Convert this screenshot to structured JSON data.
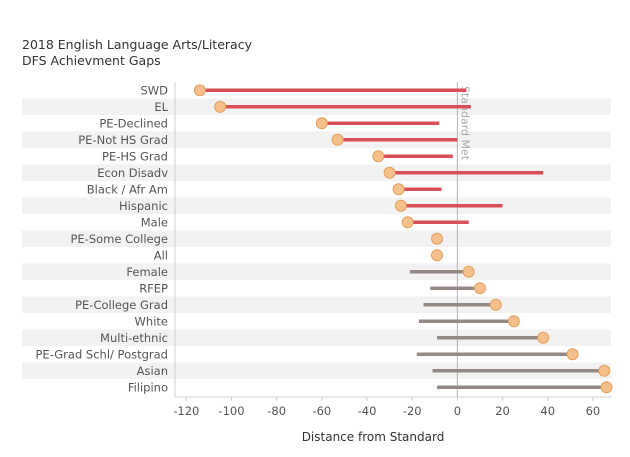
{
  "title_line1": "2018 English Language Arts/Literacy",
  "title_line2": "DFS Achievment Gaps",
  "colors": {
    "gap_below": "#d94f57",
    "gap_above": "#948985",
    "marker_fill": "#f5c08c",
    "marker_stroke": "#e3a05c",
    "band": "#f2f2f2",
    "reference_line": "#b3b3b3"
  },
  "chart_data": {
    "type": "dumbbell",
    "xlabel": "Distance from Standard",
    "xlim": [
      -125,
      68
    ],
    "xticks": [
      -120,
      -100,
      -80,
      -60,
      -40,
      -20,
      0,
      20,
      40,
      60
    ],
    "reference_line": {
      "value": 0,
      "label": "Standard Met"
    },
    "rows": [
      {
        "group": "SWD",
        "dfs": -114,
        "gap_end": 4,
        "gap": "below"
      },
      {
        "group": "EL",
        "dfs": -105,
        "gap_end": 6,
        "gap": "below"
      },
      {
        "group": "PE-Declined",
        "dfs": -60,
        "gap_end": -8,
        "gap": "below"
      },
      {
        "group": "PE-Not HS Grad",
        "dfs": -53,
        "gap_end": 0,
        "gap": "below"
      },
      {
        "group": "PE-HS Grad",
        "dfs": -35,
        "gap_end": -2,
        "gap": "below"
      },
      {
        "group": "Econ Disadv",
        "dfs": -30,
        "gap_end": 38,
        "gap": "below"
      },
      {
        "group": "Black / Afr Am",
        "dfs": -26,
        "gap_end": -7,
        "gap": "below"
      },
      {
        "group": "Hispanic",
        "dfs": -25,
        "gap_end": 20,
        "gap": "below"
      },
      {
        "group": "Male",
        "dfs": -22,
        "gap_end": 5,
        "gap": "below"
      },
      {
        "group": "PE-Some College",
        "dfs": -9,
        "gap_end": null,
        "gap": "none"
      },
      {
        "group": "All",
        "dfs": -9,
        "gap_end": null,
        "gap": "none"
      },
      {
        "group": "Female",
        "dfs": 5,
        "gap_end": -21,
        "gap": "above"
      },
      {
        "group": "RFEP",
        "dfs": 10,
        "gap_end": -12,
        "gap": "above"
      },
      {
        "group": "PE-College Grad",
        "dfs": 17,
        "gap_end": -15,
        "gap": "above"
      },
      {
        "group": "White",
        "dfs": 25,
        "gap_end": -17,
        "gap": "above"
      },
      {
        "group": "Multi-ethnic",
        "dfs": 38,
        "gap_end": -9,
        "gap": "above"
      },
      {
        "group": "PE-Grad Schl/ Postgrad",
        "dfs": 51,
        "gap_end": -18,
        "gap": "above"
      },
      {
        "group": "Asian",
        "dfs": 65,
        "gap_end": -11,
        "gap": "above"
      },
      {
        "group": "Filipino",
        "dfs": 66,
        "gap_end": -9,
        "gap": "above"
      }
    ]
  }
}
